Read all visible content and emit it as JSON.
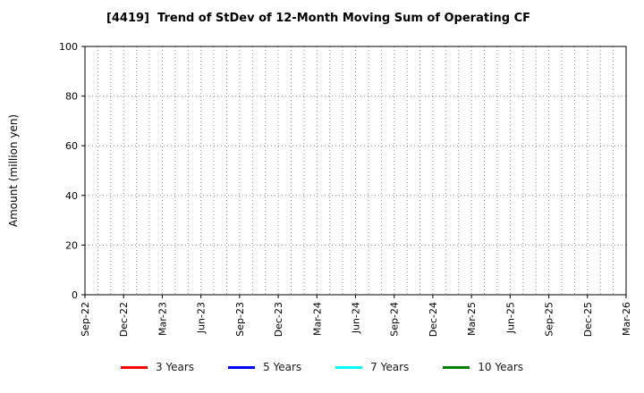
{
  "chart_data": {
    "type": "line",
    "title": "[4419]  Trend of StDev of 12-Month Moving Sum of Operating CF",
    "xlabel": "",
    "ylabel": "Amount (million yen)",
    "ylim": [
      0,
      100
    ],
    "yticks": [
      0,
      20,
      40,
      60,
      80,
      100
    ],
    "categories": [
      "Sep-22",
      "Dec-22",
      "Mar-23",
      "Jun-23",
      "Sep-23",
      "Dec-23",
      "Mar-24",
      "Jun-24",
      "Sep-24",
      "Dec-24",
      "Mar-25",
      "Jun-25",
      "Sep-25",
      "Dec-25",
      "Mar-26"
    ],
    "minor_x_divisions_per_category": 3,
    "grid": true,
    "grid_style": "dotted",
    "grid_color": "#8c8c8c",
    "legend_position": "bottom",
    "series": [
      {
        "name": "3 Years",
        "color": "#ff0000",
        "values": []
      },
      {
        "name": "5 Years",
        "color": "#0000ff",
        "values": []
      },
      {
        "name": "7 Years",
        "color": "#00ffff",
        "values": []
      },
      {
        "name": "10 Years",
        "color": "#007f00",
        "values": []
      }
    ],
    "note": "no data plotted - empty chart area"
  }
}
